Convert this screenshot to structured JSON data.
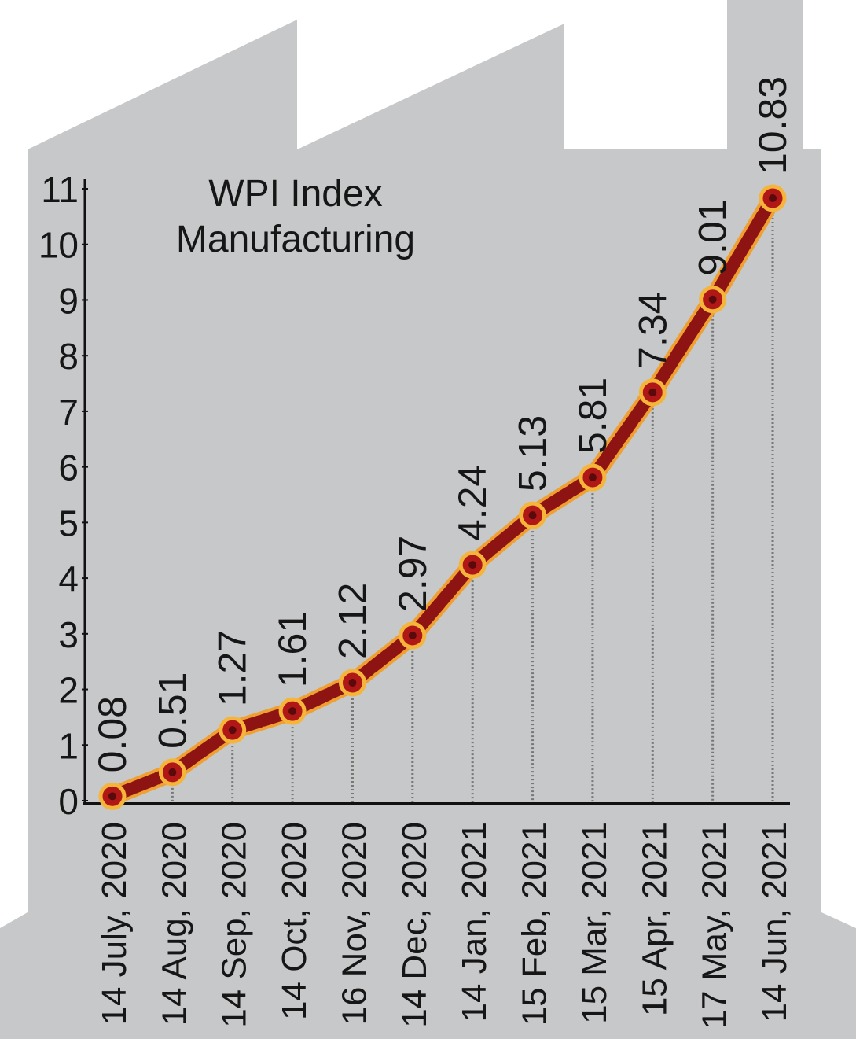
{
  "chart_data": {
    "type": "line",
    "title": [
      "WPI Index",
      "Manufacturing"
    ],
    "categories": [
      "14 July, 2020",
      "14 Aug, 2020",
      "14 Sep, 2020",
      "14 Oct, 2020",
      "16 Nov, 2020",
      "14 Dec, 2020",
      "14 Jan, 2021",
      "15 Feb, 2021",
      "15 Mar, 2021",
      "15 Apr, 2021",
      "17 May, 2021",
      "14 Jun, 2021"
    ],
    "values": [
      0.08,
      0.51,
      1.27,
      1.61,
      2.12,
      2.97,
      4.24,
      5.13,
      5.81,
      7.34,
      9.01,
      10.83
    ],
    "color": "#8e1414",
    "ylim": [
      0,
      11
    ],
    "yticks": [
      0,
      1,
      2,
      3,
      4,
      5,
      6,
      7,
      8,
      9,
      10,
      11
    ]
  }
}
